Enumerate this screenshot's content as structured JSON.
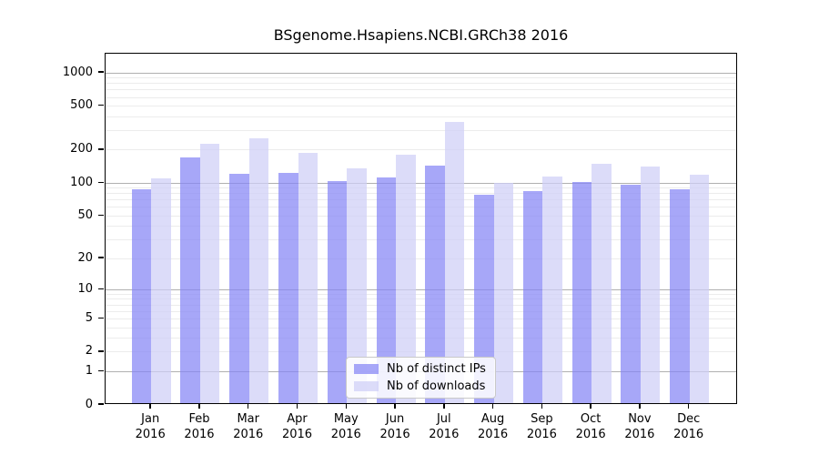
{
  "title": "BSgenome.Hsapiens.NCBI.GRCh38 2016",
  "chart_data": {
    "type": "bar",
    "title": "BSgenome.Hsapiens.NCBI.GRCh38 2016",
    "xlabel": "",
    "ylabel": "",
    "y_scale": "log1p",
    "y_ticks": [
      0,
      1,
      2,
      5,
      10,
      20,
      50,
      100,
      200,
      500,
      1000
    ],
    "ylim": [
      0,
      1500
    ],
    "grid": "horizontal log gridlines, majors darker at 1/10/100/1000, minors light",
    "legend_position": "inside bottom-center",
    "categories": [
      "Jan 2016",
      "Feb 2016",
      "Mar 2016",
      "Apr 2016",
      "May 2016",
      "Jun 2016",
      "Jul 2016",
      "Aug 2016",
      "Sep 2016",
      "Oct 2016",
      "Nov 2016",
      "Dec 2016"
    ],
    "series": [
      {
        "key": "ips",
        "name": "Nb of distinct IPs",
        "color": "rgba(133,133,245,0.72)",
        "rendered_color": "#a7a7f8",
        "values": [
          84,
          166,
          117,
          120,
          100,
          109,
          138,
          75,
          81,
          99,
          93,
          84
        ]
      },
      {
        "key": "downloads",
        "name": "Nb of downloads",
        "color": "rgba(206,206,247,0.72)",
        "rendered_color": "#dcdcf9",
        "values": [
          106,
          220,
          244,
          180,
          131,
          175,
          346,
          97,
          111,
          144,
          137,
          116
        ]
      }
    ]
  },
  "colors": {
    "background": "#ffffff",
    "axis": "#000000",
    "grid_major": "#b0b0b0",
    "grid_minor": "#ececec",
    "legend_border": "#c9c9c9"
  }
}
